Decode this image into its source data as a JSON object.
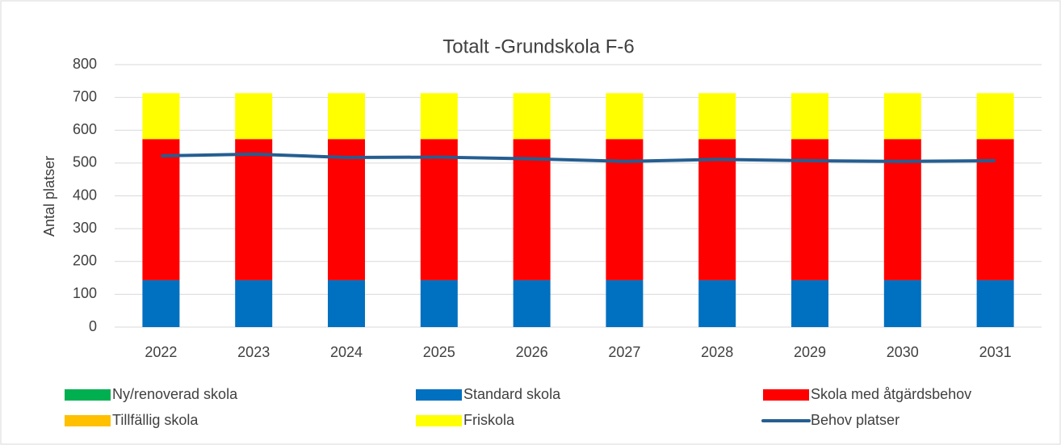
{
  "chart_data": {
    "type": "bar",
    "stacked": true,
    "title": "Totalt -Grundskola F-6",
    "y_label": "Antal platser",
    "categories": [
      "2022",
      "2023",
      "2024",
      "2025",
      "2026",
      "2027",
      "2028",
      "2029",
      "2030",
      "2031"
    ],
    "series": [
      {
        "name": "Ny/renoverad skola",
        "color": "#00b050",
        "type": "bar",
        "values": [
          0,
          0,
          0,
          0,
          0,
          0,
          0,
          0,
          0,
          0
        ]
      },
      {
        "name": "Standard skola",
        "color": "#0070c0",
        "type": "bar",
        "values": [
          143,
          143,
          143,
          143,
          143,
          143,
          143,
          143,
          143,
          143
        ]
      },
      {
        "name": "Skola med åtgärdsbehov",
        "color": "#ff0000",
        "type": "bar",
        "values": [
          430,
          430,
          430,
          430,
          430,
          430,
          430,
          430,
          430,
          430
        ]
      },
      {
        "name": "Tillfällig skola",
        "color": "#ffc000",
        "type": "bar",
        "values": [
          0,
          0,
          0,
          0,
          0,
          0,
          0,
          0,
          0,
          0
        ]
      },
      {
        "name": "Friskola",
        "color": "#ffff00",
        "type": "bar",
        "values": [
          140,
          140,
          140,
          140,
          140,
          140,
          140,
          140,
          140,
          140
        ]
      },
      {
        "name": "Behov platser",
        "color": "#255e91",
        "type": "line",
        "values": [
          522,
          527,
          517,
          518,
          513,
          505,
          511,
          507,
          505,
          507
        ]
      }
    ],
    "ylim": [
      0,
      800
    ],
    "yticks": [
      0,
      100,
      200,
      300,
      400,
      500,
      600,
      700,
      800
    ],
    "grid": true
  }
}
